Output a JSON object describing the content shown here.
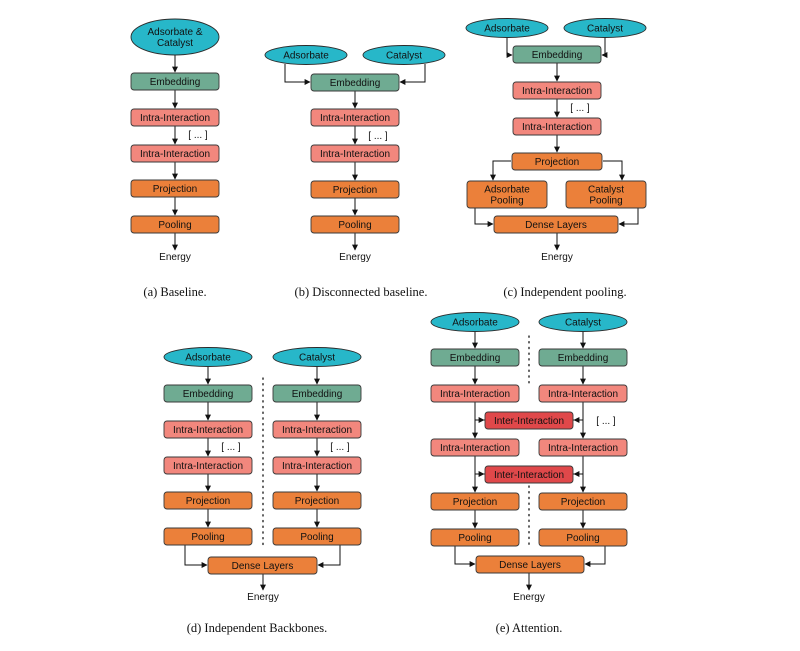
{
  "colors": {
    "input": "#27b7c9",
    "embedding": "#6fab92",
    "intra": "#f2877d",
    "inter": "#e0484a",
    "orange": "#eb803a"
  },
  "labels": {
    "adsorbate_catalyst": "Adsorbate & Catalyst",
    "adsorbate": "Adsorbate",
    "catalyst": "Catalyst",
    "embedding": "Embedding",
    "intra": "Intra-Interaction",
    "inter": "Inter-Interaction",
    "ellipsis": "[ ... ]",
    "projection": "Projection",
    "pooling": "Pooling",
    "adsorbate_pooling": "Adsorbate Pooling",
    "catalyst_pooling": "Catalyst Pooling",
    "dense": "Dense Layers",
    "energy": "Energy"
  },
  "captions": {
    "a": "(a) Baseline.",
    "b": "(b) Disconnected baseline.",
    "c": "(c) Independent pooling.",
    "d": "(d) Independent Backbones.",
    "e": "(e) Attention."
  }
}
